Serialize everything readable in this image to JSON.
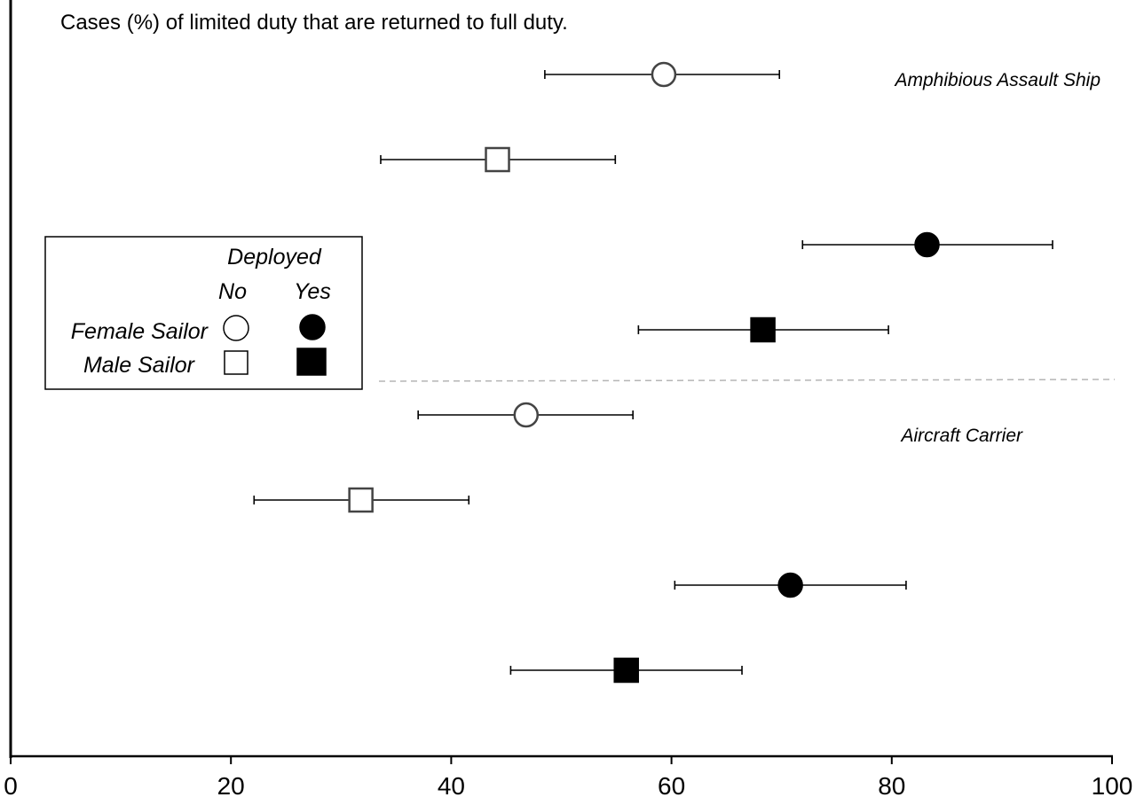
{
  "chart_data": {
    "type": "scatter",
    "title": "Cases (%) of limited duty that are returned to full duty.",
    "xlim": [
      0,
      100
    ],
    "x_ticks": [
      "0",
      "20",
      "40",
      "60",
      "80",
      "100"
    ],
    "grid": false,
    "group_labels": [
      "Amphibious Assault Ship",
      "Aircraft Carrier"
    ],
    "legend": {
      "position": "left",
      "header": "Deployed",
      "columns": [
        "No",
        "Yes"
      ],
      "rows": [
        "Female Sailor",
        "Male Sailor"
      ]
    },
    "points": [
      {
        "group": "Amphibious Assault Ship",
        "sex": "Female Sailor",
        "deployed": "No",
        "value": 59.3,
        "ci_low": 48.5,
        "ci_high": 69.8
      },
      {
        "group": "Amphibious Assault Ship",
        "sex": "Male Sailor",
        "deployed": "No",
        "value": 44.2,
        "ci_low": 33.6,
        "ci_high": 54.9
      },
      {
        "group": "Amphibious Assault Ship",
        "sex": "Female Sailor",
        "deployed": "Yes",
        "value": 83.2,
        "ci_low": 71.9,
        "ci_high": 94.6
      },
      {
        "group": "Amphibious Assault Ship",
        "sex": "Male Sailor",
        "deployed": "Yes",
        "value": 68.3,
        "ci_low": 57.0,
        "ci_high": 79.7
      },
      {
        "group": "Aircraft Carrier",
        "sex": "Female Sailor",
        "deployed": "No",
        "value": 46.8,
        "ci_low": 37.0,
        "ci_high": 56.5
      },
      {
        "group": "Aircraft Carrier",
        "sex": "Male Sailor",
        "deployed": "No",
        "value": 31.8,
        "ci_low": 22.1,
        "ci_high": 41.6
      },
      {
        "group": "Aircraft Carrier",
        "sex": "Female Sailor",
        "deployed": "Yes",
        "value": 70.8,
        "ci_low": 60.3,
        "ci_high": 81.3
      },
      {
        "group": "Aircraft Carrier",
        "sex": "Male Sailor",
        "deployed": "Yes",
        "value": 55.9,
        "ci_low": 45.4,
        "ci_high": 66.4
      }
    ]
  }
}
